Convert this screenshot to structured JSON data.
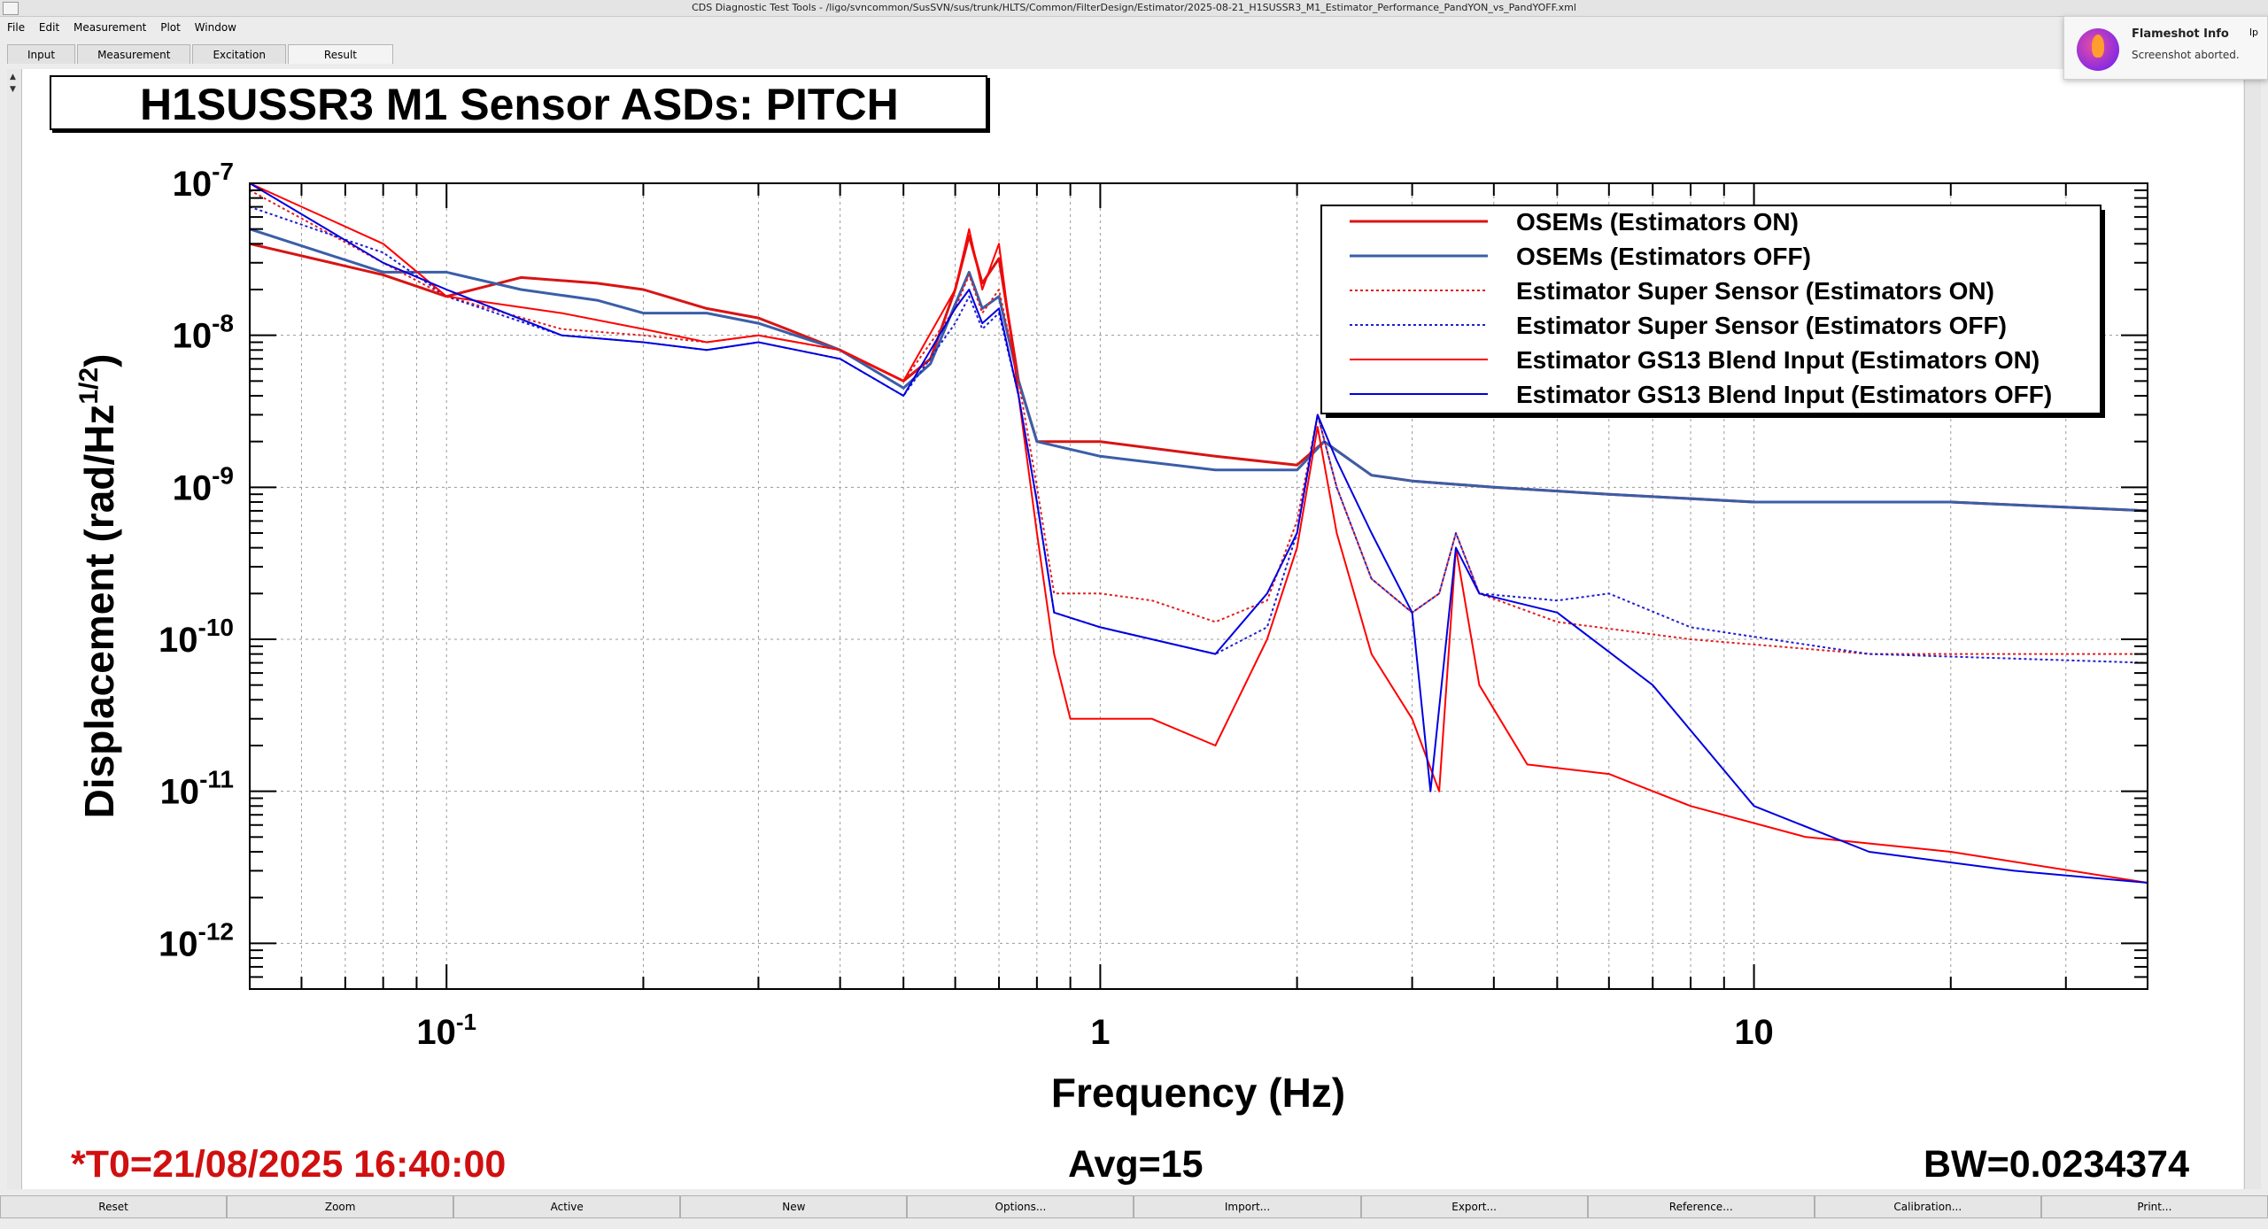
{
  "window": {
    "title": "CDS Diagnostic Test Tools - /ligo/svncommon/SusSVN/sus/trunk/HLTS/Common/FilterDesign/Estimator/2025-08-21_H1SUSSR3_M1_Estimator_Performance_PandYON_vs_PandYOFF.xml"
  },
  "menu": [
    "File",
    "Edit",
    "Measurement",
    "Plot",
    "Window"
  ],
  "tabs": [
    "Input",
    "Measurement",
    "Excitation",
    "Result"
  ],
  "notification": {
    "title": "Flameshot Info",
    "message": "Screenshot aborted.",
    "partial_text": "lp"
  },
  "footer": {
    "t0": "*T0=21/08/2025 16:40:00",
    "avg": "Avg=15",
    "bw": "BW=0.0234374"
  },
  "buttons": [
    "Reset",
    "Zoom",
    "Active",
    "New",
    "Options...",
    "Import...",
    "Export...",
    "Reference...",
    "Calibration...",
    "Print..."
  ],
  "chart_data": {
    "type": "line",
    "title": "H1SUSSR3 M1 Sensor ASDs: PITCH",
    "xlabel": "Frequency (Hz)",
    "ylabel": "Displacement (rad/Hz^{1/2})",
    "xscale": "log",
    "yscale": "log",
    "xlim": [
      0.05,
      40
    ],
    "ylim": [
      5e-13,
      1e-07
    ],
    "x_ticks": [
      "10^-1",
      "1",
      "10"
    ],
    "y_ticks": [
      "10^-7",
      "10^-8",
      "10^-9",
      "10^-10",
      "10^-11",
      "10^-12"
    ],
    "grid": true,
    "legend_position": "top-right",
    "series": [
      {
        "name": "OSEMs (Estimators ON)",
        "color": "#d81414",
        "style": "solid",
        "width": 3,
        "points": [
          [
            0.05,
            4e-08
          ],
          [
            0.08,
            2.5e-08
          ],
          [
            0.1,
            1.8e-08
          ],
          [
            0.13,
            2.4e-08
          ],
          [
            0.17,
            2.2e-08
          ],
          [
            0.2,
            2e-08
          ],
          [
            0.25,
            1.5e-08
          ],
          [
            0.3,
            1.3e-08
          ],
          [
            0.4,
            8e-09
          ],
          [
            0.5,
            5e-09
          ],
          [
            0.55,
            7e-09
          ],
          [
            0.6,
            2e-08
          ],
          [
            0.63,
            4.5e-08
          ],
          [
            0.66,
            2.2e-08
          ],
          [
            0.7,
            3.2e-08
          ],
          [
            0.75,
            5e-09
          ],
          [
            0.8,
            2e-09
          ],
          [
            1,
            2e-09
          ],
          [
            1.5,
            1.6e-09
          ],
          [
            2,
            1.4e-09
          ],
          [
            2.2,
            2e-09
          ],
          [
            2.6,
            1.2e-09
          ],
          [
            3,
            1.1e-09
          ],
          [
            4,
            1e-09
          ],
          [
            6,
            9e-10
          ],
          [
            10,
            8e-10
          ],
          [
            20,
            8e-10
          ],
          [
            40,
            7e-10
          ]
        ]
      },
      {
        "name": "OSEMs (Estimators OFF)",
        "color": "#3a5ea8",
        "style": "solid",
        "width": 3,
        "points": [
          [
            0.05,
            5e-08
          ],
          [
            0.08,
            2.6e-08
          ],
          [
            0.1,
            2.6e-08
          ],
          [
            0.13,
            2e-08
          ],
          [
            0.17,
            1.7e-08
          ],
          [
            0.2,
            1.4e-08
          ],
          [
            0.25,
            1.4e-08
          ],
          [
            0.3,
            1.2e-08
          ],
          [
            0.4,
            8e-09
          ],
          [
            0.5,
            4.5e-09
          ],
          [
            0.55,
            6.5e-09
          ],
          [
            0.6,
            1.6e-08
          ],
          [
            0.63,
            2.6e-08
          ],
          [
            0.66,
            1.5e-08
          ],
          [
            0.7,
            1.8e-08
          ],
          [
            0.75,
            5e-09
          ],
          [
            0.8,
            2e-09
          ],
          [
            1,
            1.6e-09
          ],
          [
            1.5,
            1.3e-09
          ],
          [
            2,
            1.3e-09
          ],
          [
            2.2,
            2e-09
          ],
          [
            2.6,
            1.2e-09
          ],
          [
            3,
            1.1e-09
          ],
          [
            4,
            1e-09
          ],
          [
            6,
            9e-10
          ],
          [
            10,
            8e-10
          ],
          [
            20,
            8e-10
          ],
          [
            40,
            7e-10
          ]
        ]
      },
      {
        "name": "Estimator Super Sensor (Estimators ON)",
        "color": "#e02020",
        "style": "dotted",
        "width": 2,
        "points": [
          [
            0.05,
            9e-08
          ],
          [
            0.08,
            3e-08
          ],
          [
            0.1,
            1.8e-08
          ],
          [
            0.15,
            1.1e-08
          ],
          [
            0.2,
            1e-08
          ],
          [
            0.25,
            9e-09
          ],
          [
            0.3,
            1e-08
          ],
          [
            0.4,
            8e-09
          ],
          [
            0.5,
            5e-09
          ],
          [
            0.6,
            1.5e-08
          ],
          [
            0.63,
            2.5e-08
          ],
          [
            0.66,
            1.4e-08
          ],
          [
            0.7,
            2e-08
          ],
          [
            0.75,
            5e-09
          ],
          [
            0.8,
            1e-09
          ],
          [
            0.85,
            2e-10
          ],
          [
            1,
            2e-10
          ],
          [
            1.2,
            1.8e-10
          ],
          [
            1.5,
            1.3e-10
          ],
          [
            1.8,
            1.8e-10
          ],
          [
            2,
            6e-10
          ],
          [
            2.15,
            3e-09
          ],
          [
            2.3,
            1e-09
          ],
          [
            2.6,
            2.5e-10
          ],
          [
            3,
            1.5e-10
          ],
          [
            3.3,
            2e-10
          ],
          [
            3.5,
            5e-10
          ],
          [
            3.8,
            2e-10
          ],
          [
            5,
            1.3e-10
          ],
          [
            8,
            1e-10
          ],
          [
            15,
            8e-11
          ],
          [
            40,
            8e-11
          ]
        ]
      },
      {
        "name": "Estimator Super Sensor (Estimators OFF)",
        "color": "#2020d0",
        "style": "dotted",
        "width": 2,
        "points": [
          [
            0.05,
            7e-08
          ],
          [
            0.08,
            3.5e-08
          ],
          [
            0.1,
            1.8e-08
          ],
          [
            0.15,
            1e-08
          ],
          [
            0.2,
            9e-09
          ],
          [
            0.25,
            8e-09
          ],
          [
            0.3,
            9e-09
          ],
          [
            0.4,
            7e-09
          ],
          [
            0.5,
            4e-09
          ],
          [
            0.6,
            1.2e-08
          ],
          [
            0.63,
            1.8e-08
          ],
          [
            0.66,
            1.1e-08
          ],
          [
            0.7,
            1.4e-08
          ],
          [
            0.75,
            4e-09
          ],
          [
            0.8,
            8e-10
          ],
          [
            0.85,
            1.5e-10
          ],
          [
            1,
            1.2e-10
          ],
          [
            1.2,
            1e-10
          ],
          [
            1.5,
            8e-11
          ],
          [
            1.8,
            1.2e-10
          ],
          [
            2,
            5e-10
          ],
          [
            2.15,
            3e-09
          ],
          [
            2.3,
            1e-09
          ],
          [
            2.6,
            2.5e-10
          ],
          [
            3,
            1.5e-10
          ],
          [
            3.3,
            2e-10
          ],
          [
            3.5,
            5e-10
          ],
          [
            3.8,
            2e-10
          ],
          [
            5,
            1.8e-10
          ],
          [
            6,
            2e-10
          ],
          [
            8,
            1.2e-10
          ],
          [
            15,
            8e-11
          ],
          [
            40,
            7e-11
          ]
        ]
      },
      {
        "name": "Estimator GS13 Blend Input (Estimators ON)",
        "color": "#ff0000",
        "style": "solid",
        "width": 2,
        "points": [
          [
            0.05,
            1e-07
          ],
          [
            0.08,
            4e-08
          ],
          [
            0.1,
            1.8e-08
          ],
          [
            0.15,
            1.4e-08
          ],
          [
            0.2,
            1.1e-08
          ],
          [
            0.25,
            9e-09
          ],
          [
            0.3,
            1e-08
          ],
          [
            0.4,
            8e-09
          ],
          [
            0.5,
            5e-09
          ],
          [
            0.6,
            2e-08
          ],
          [
            0.63,
            5e-08
          ],
          [
            0.66,
            2e-08
          ],
          [
            0.7,
            4e-08
          ],
          [
            0.75,
            4e-09
          ],
          [
            0.8,
            5e-10
          ],
          [
            0.85,
            8e-11
          ],
          [
            0.9,
            3e-11
          ],
          [
            1,
            3e-11
          ],
          [
            1.2,
            3e-11
          ],
          [
            1.5,
            2e-11
          ],
          [
            1.8,
            1e-10
          ],
          [
            2,
            4e-10
          ],
          [
            2.15,
            2.5e-09
          ],
          [
            2.3,
            5e-10
          ],
          [
            2.6,
            8e-11
          ],
          [
            3,
            3e-11
          ],
          [
            3.3,
            1e-11
          ],
          [
            3.5,
            4e-10
          ],
          [
            3.8,
            5e-11
          ],
          [
            4.5,
            1.5e-11
          ],
          [
            6,
            1.3e-11
          ],
          [
            8,
            8e-12
          ],
          [
            12,
            5e-12
          ],
          [
            20,
            4e-12
          ],
          [
            40,
            2.5e-12
          ]
        ]
      },
      {
        "name": "Estimator GS13 Blend Input (Estimators OFF)",
        "color": "#0000e0",
        "style": "solid",
        "width": 2,
        "points": [
          [
            0.05,
            1e-07
          ],
          [
            0.08,
            3e-08
          ],
          [
            0.1,
            2e-08
          ],
          [
            0.15,
            1e-08
          ],
          [
            0.2,
            9e-09
          ],
          [
            0.25,
            8e-09
          ],
          [
            0.3,
            9e-09
          ],
          [
            0.4,
            7e-09
          ],
          [
            0.5,
            4e-09
          ],
          [
            0.6,
            1.5e-08
          ],
          [
            0.63,
            2e-08
          ],
          [
            0.66,
            1.2e-08
          ],
          [
            0.7,
            1.5e-08
          ],
          [
            0.75,
            4e-09
          ],
          [
            0.8,
            8e-10
          ],
          [
            0.85,
            1.5e-10
          ],
          [
            1,
            1.2e-10
          ],
          [
            1.2,
            1e-10
          ],
          [
            1.5,
            8e-11
          ],
          [
            1.8,
            2e-10
          ],
          [
            2,
            5e-10
          ],
          [
            2.15,
            3e-09
          ],
          [
            2.3,
            1.5e-09
          ],
          [
            2.6,
            5e-10
          ],
          [
            3,
            1.5e-10
          ],
          [
            3.2,
            1e-11
          ],
          [
            3.5,
            4e-10
          ],
          [
            3.8,
            2e-10
          ],
          [
            5,
            1.5e-10
          ],
          [
            7,
            5e-11
          ],
          [
            10,
            8e-12
          ],
          [
            15,
            4e-12
          ],
          [
            25,
            3e-12
          ],
          [
            40,
            2.5e-12
          ]
        ]
      }
    ]
  }
}
